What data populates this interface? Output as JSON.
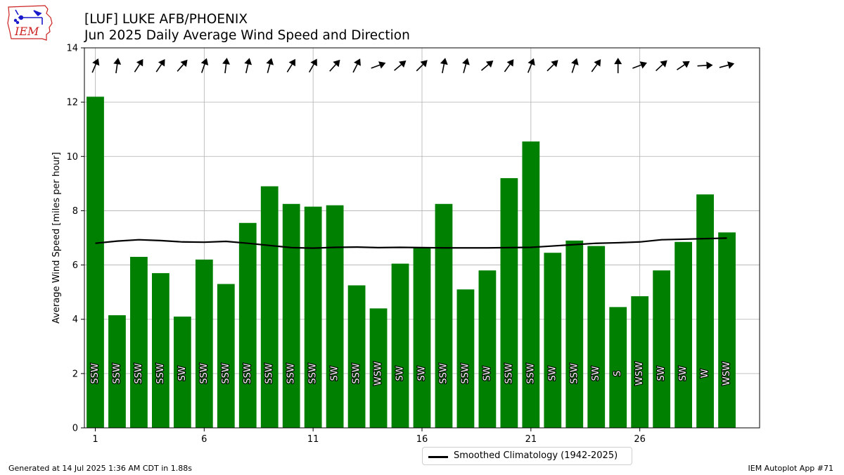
{
  "header": {
    "logo_text": "IEM",
    "title_line1": "[LUF] LUKE AFB/PHOENIX",
    "title_line2": "Jun 2025 Daily Average Wind Speed and Direction"
  },
  "footer": {
    "left": "Generated at 14 Jul 2025 1:36 AM CDT in 1.88s",
    "right": "IEM Autoplot App #71"
  },
  "legend": {
    "label": "Smoothed Climatology (1942-2025)"
  },
  "colors": {
    "bar": "#008000",
    "climatology_line": "#000000",
    "grid": "#b0b0b0",
    "logo_red": "#cc2222",
    "logo_blue": "#1a1acc"
  },
  "chart_data": {
    "type": "bar",
    "ylabel": "Average Wind Speed [miles per hour]",
    "ylim": [
      0,
      14
    ],
    "xlim": [
      0.5,
      31.5
    ],
    "xticks": [
      1,
      6,
      11,
      16,
      21,
      26
    ],
    "yticks": [
      0,
      2,
      4,
      6,
      8,
      10,
      12,
      14
    ],
    "grid": true,
    "days": [
      1,
      2,
      3,
      4,
      5,
      6,
      7,
      8,
      9,
      10,
      11,
      12,
      13,
      14,
      15,
      16,
      17,
      18,
      19,
      20,
      21,
      22,
      23,
      24,
      25,
      26,
      27,
      28,
      29,
      30
    ],
    "speed": [
      12.2,
      4.15,
      6.3,
      5.7,
      4.1,
      6.2,
      5.3,
      7.55,
      8.9,
      8.25,
      8.15,
      8.2,
      5.25,
      4.4,
      6.05,
      6.65,
      8.25,
      5.1,
      5.8,
      9.2,
      10.55,
      6.45,
      6.9,
      6.7,
      4.45,
      4.85,
      5.8,
      6.85,
      8.6,
      7.2
    ],
    "direction_labels": [
      "SSW",
      "SSW",
      "SSW",
      "SSW",
      "SW",
      "SSW",
      "SSW",
      "SSW",
      "SSW",
      "SSW",
      "SSW",
      "SW",
      "SSW",
      "WSW",
      "SW",
      "SW",
      "SSW",
      "SSW",
      "SW",
      "SSW",
      "SSW",
      "SW",
      "SSW",
      "SW",
      "S",
      "WSW",
      "SW",
      "SW",
      "W",
      "WSW"
    ],
    "direction_degrees": [
      203,
      188,
      213,
      214,
      221,
      199,
      187,
      193,
      195,
      212,
      210,
      222,
      207,
      250,
      230,
      225,
      191,
      195,
      230,
      216,
      202,
      225,
      198,
      216,
      180,
      249,
      227,
      236,
      267,
      255
    ],
    "climatology_name": "Smoothed Climatology (1942-2025)",
    "climatology": [
      6.8,
      6.88,
      6.93,
      6.9,
      6.85,
      6.84,
      6.87,
      6.8,
      6.72,
      6.64,
      6.62,
      6.65,
      6.66,
      6.64,
      6.65,
      6.64,
      6.63,
      6.63,
      6.63,
      6.64,
      6.65,
      6.7,
      6.75,
      6.8,
      6.82,
      6.85,
      6.93,
      6.95,
      6.97,
      6.99
    ]
  }
}
